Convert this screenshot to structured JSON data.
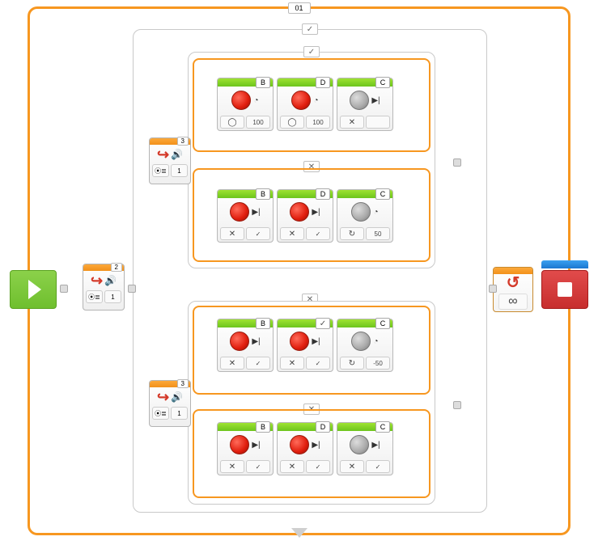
{
  "colors": {
    "orange": "#f79720",
    "green_block": "#7dc926",
    "red_motor": "#e01d0d",
    "blue_cap": "#1b77d0",
    "start_green": "#6fbf2e",
    "stop_red": "#c72e2e",
    "grey_border": "#c9c9c9"
  },
  "loop": {
    "label": "01",
    "mode": "infinity",
    "symbol": "∞"
  },
  "mainSwitch": {
    "port": "2",
    "compare": "1",
    "type": "sound-sensor"
  },
  "upperSwitch": {
    "port": "3",
    "compare": "1",
    "type": "sound-sensor"
  },
  "lowerSwitch": {
    "port": "3",
    "compare": "1",
    "type": "sound-sensor"
  },
  "tabs": {
    "check": "✓",
    "cross": "✕"
  },
  "rows": {
    "r1": [
      {
        "port": "B",
        "motor": "red",
        "btn1": "◯",
        "btn2": "100",
        "icon2": "timer"
      },
      {
        "port": "D",
        "motor": "red",
        "btn1": "◯",
        "btn2": "100",
        "icon2": "timer"
      },
      {
        "port": "C",
        "motor": "grey",
        "btn1": "✕",
        "btn2": "",
        "icon2": "stop"
      }
    ],
    "r2": [
      {
        "port": "B",
        "motor": "red",
        "btn1": "✕",
        "btn2": "✓",
        "icon2": "stop"
      },
      {
        "port": "D",
        "motor": "red",
        "btn1": "✕",
        "btn2": "✓",
        "icon2": "stop"
      },
      {
        "port": "C",
        "motor": "grey",
        "btn1": "↻",
        "btn2": "50",
        "icon2": "timer"
      }
    ],
    "r3": [
      {
        "port": "B",
        "motor": "red",
        "btn1": "✕",
        "btn2": "✓",
        "icon2": "stop"
      },
      {
        "port": "✓",
        "motor": "red",
        "btn1": "✕",
        "btn2": "✓",
        "icon2": "stop",
        "portIsCheck": true
      },
      {
        "port": "C",
        "motor": "grey",
        "btn1": "↻",
        "btn2": "-50",
        "icon2": "timer"
      }
    ],
    "r4": [
      {
        "port": "B",
        "motor": "red",
        "btn1": "✕",
        "btn2": "✓",
        "icon2": "stop"
      },
      {
        "port": "D",
        "motor": "red",
        "btn1": "✕",
        "btn2": "✓",
        "icon2": "stop"
      },
      {
        "port": "C",
        "motor": "grey",
        "btn1": "✕",
        "btn2": "✓",
        "icon2": "stop"
      }
    ]
  }
}
